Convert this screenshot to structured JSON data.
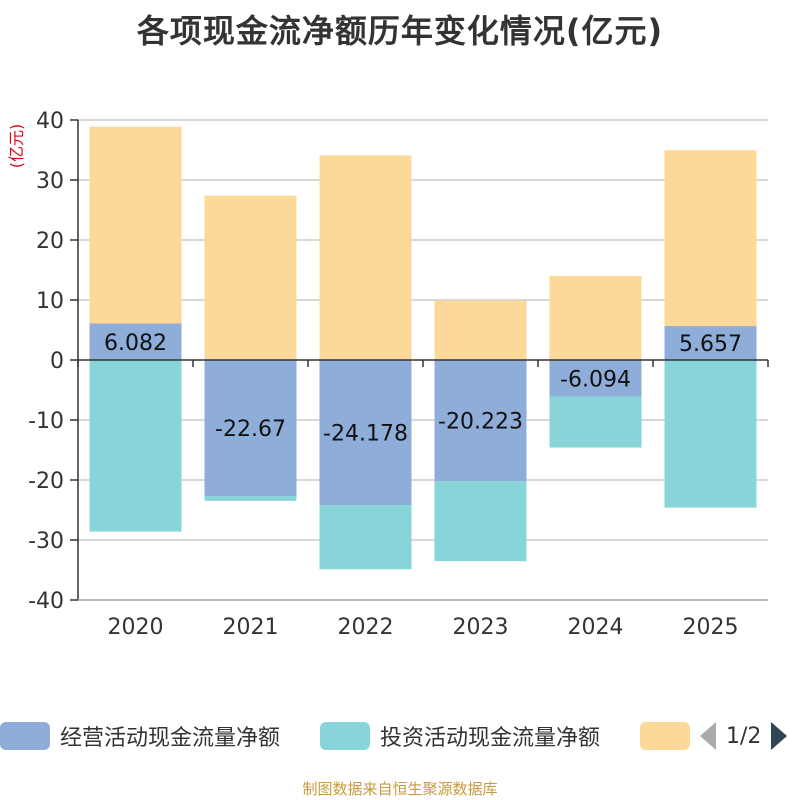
{
  "chart_data": {
    "type": "bar",
    "stacked": true,
    "title": "各项现金流净额历年变化情况(亿元)",
    "ylabel": "(亿元)",
    "xlabel": "",
    "categories": [
      "2020",
      "2021",
      "2022",
      "2023",
      "2024",
      "2025"
    ],
    "ylim": [
      -40,
      40
    ],
    "yticks": [
      40,
      30,
      20,
      10,
      0,
      -10,
      -20,
      -30,
      -40
    ],
    "grid": true,
    "series": [
      {
        "name": "经营活动现金流量净额",
        "color": "#8eadd9",
        "values": [
          6.082,
          -22.67,
          -24.178,
          -20.223,
          -6.094,
          5.657
        ],
        "labels": [
          "6.082",
          "-22.67",
          "-24.178",
          "-20.223",
          "-6.094",
          "5.657"
        ]
      },
      {
        "name": "投资活动现金流量净额",
        "color": "#87d5d8",
        "values": [
          -28.6,
          -0.8,
          -10.7,
          -13.3,
          -8.5,
          -24.6
        ]
      },
      {
        "name": "",
        "color": "#fdd999",
        "values": [
          32.8,
          27.4,
          34.1,
          9.9,
          14.0,
          29.3
        ]
      }
    ]
  },
  "legend": {
    "items": [
      "经营活动现金流量净额",
      "投资活动现金流量净额",
      ""
    ],
    "page": "1/2"
  },
  "source": "制图数据来自恒生聚源数据库"
}
